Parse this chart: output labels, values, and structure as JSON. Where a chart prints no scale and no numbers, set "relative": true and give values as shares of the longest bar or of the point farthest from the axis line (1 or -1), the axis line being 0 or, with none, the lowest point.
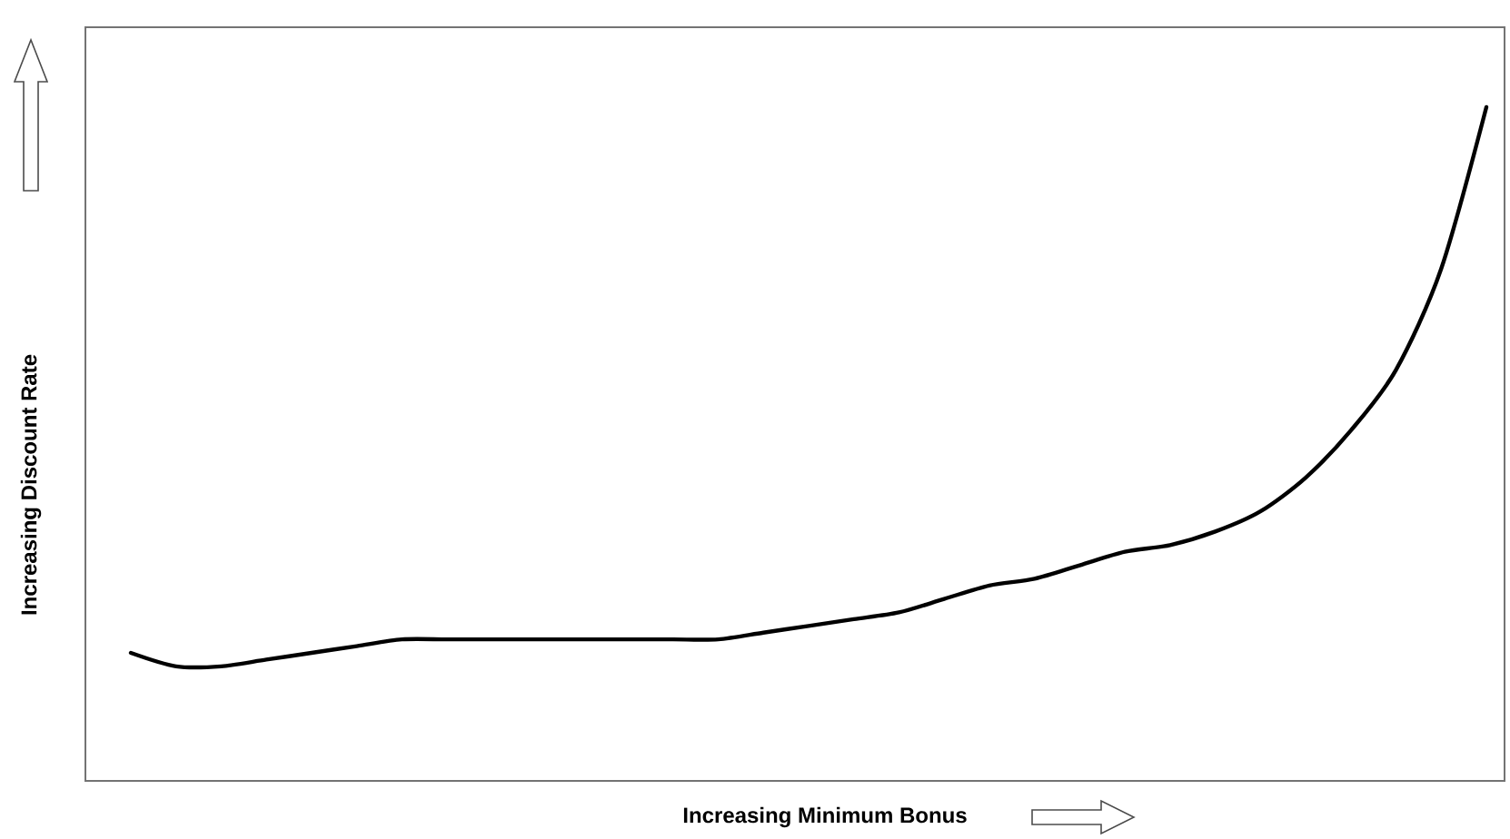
{
  "chart_data": {
    "type": "line",
    "xlabel": "Increasing Minimum Bonus",
    "ylabel": "Increasing Discount Rate",
    "relative": true,
    "marker": "none",
    "line_style": "solid",
    "categories": [
      null,
      null,
      null,
      null,
      null,
      null,
      null,
      null,
      null,
      null,
      null,
      null,
      null,
      null,
      null,
      null,
      null,
      null,
      null,
      null,
      null,
      null,
      null,
      null,
      null,
      null,
      null,
      null,
      null,
      null,
      null
    ],
    "series": [
      {
        "color": "#000000",
        "values": [
          0.19,
          0.17,
          0.17,
          0.18,
          0.19,
          0.2,
          0.21,
          0.21,
          0.21,
          0.21,
          0.21,
          0.21,
          0.21,
          0.21,
          0.22,
          0.23,
          0.24,
          0.25,
          0.27,
          0.29,
          0.3,
          0.32,
          0.34,
          0.35,
          0.37,
          0.4,
          0.45,
          0.52,
          0.61,
          0.76,
          1
        ]
      }
    ]
  }
}
